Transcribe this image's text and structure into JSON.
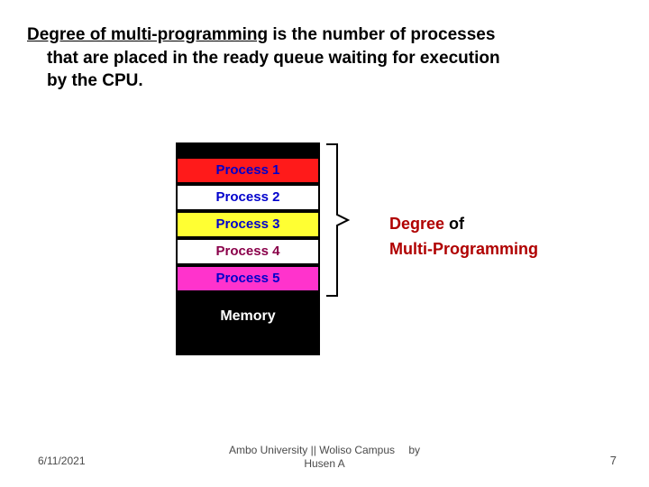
{
  "heading": {
    "underlined": "Degree of multi-programming",
    "rest_line1": " is the number of processes",
    "line2": "that are placed in the ready queue waiting for execution",
    "line3": "by the CPU."
  },
  "memory": {
    "label": "Memory",
    "processes": [
      {
        "label": "Process 1",
        "bg": "#ff1a1a",
        "fg": "#0000cc"
      },
      {
        "label": "Process 2",
        "bg": "#ffffff",
        "fg": "#0000cc"
      },
      {
        "label": "Process 3",
        "bg": "#ffff33",
        "fg": "#0000cc"
      },
      {
        "label": "Process 4",
        "bg": "#ffffff",
        "fg": "#8a004a"
      },
      {
        "label": "Process 5",
        "bg": "#ff33cc",
        "fg": "#0000cc"
      }
    ]
  },
  "degree_label": {
    "word_degree": "Degree",
    "word_of": " of",
    "line2": "Multi-Programming"
  },
  "footer": {
    "date": "6/11/2021",
    "center_line1": "Ambo University || Woliso Campus  by",
    "center_line2": "Husen A",
    "page": "7"
  },
  "bracket": {
    "stroke": "#000000",
    "stroke_width": 2
  }
}
